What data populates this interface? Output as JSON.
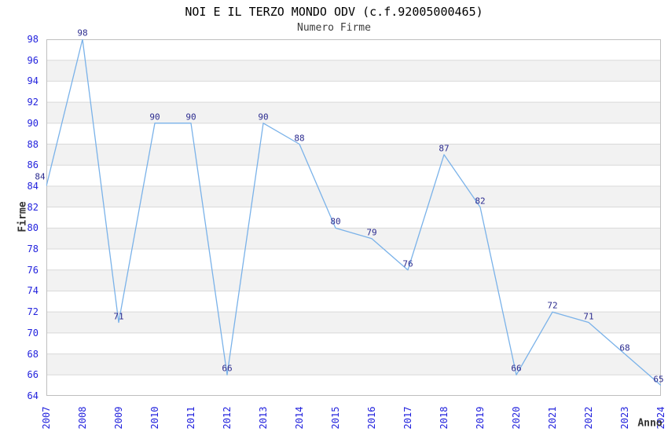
{
  "title": "NOI E IL TERZO MONDO ODV (c.f.92005000465)",
  "subtitle": "Numero Firme",
  "chart_data": {
    "type": "line",
    "title": "NOI E IL TERZO MONDO ODV (c.f.92005000465)",
    "subtitle": "Numero Firme",
    "xlabel": "Anno",
    "ylabel": "Firme",
    "categories": [
      "2007",
      "2008",
      "2009",
      "2010",
      "2011",
      "2012",
      "2013",
      "2014",
      "2015",
      "2016",
      "2017",
      "2018",
      "2019",
      "2020",
      "2021",
      "2022",
      "2023",
      "2024"
    ],
    "values": [
      84,
      98,
      71,
      90,
      90,
      66,
      90,
      88,
      80,
      79,
      76,
      87,
      82,
      66,
      72,
      71,
      68,
      65
    ],
    "ylim": [
      64,
      98
    ],
    "ytick_step": 2,
    "grid": "horizontal",
    "alternating_bands": true,
    "legend": "none",
    "data_labels_shown": true,
    "colors": {
      "line": "#7ab2e9",
      "band": "#f2f2f2",
      "gridline": "#d9d9d9",
      "plot_border": "#bfbfbf",
      "tick_label": "#2222dd",
      "data_label": "#2b2b8f",
      "axis_title": "#333333",
      "title": "#000000",
      "subtitle": "#3d3d3d"
    }
  }
}
